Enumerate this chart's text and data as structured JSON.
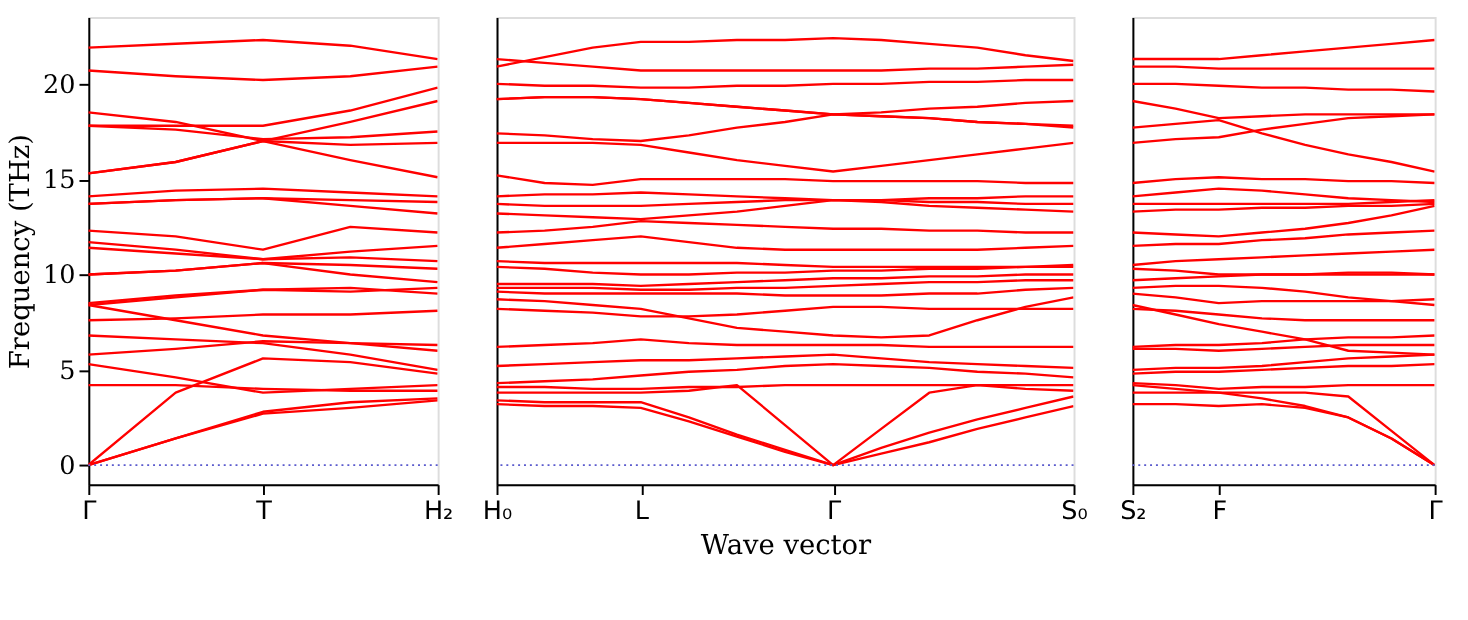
{
  "chart_data": [
    {
      "type": "line",
      "ylabel": "Frequency (THz)",
      "categories": [
        "Γ",
        null,
        "T",
        null,
        "H₂"
      ],
      "ylim": [
        -1,
        23.5
      ],
      "yticks": [
        0,
        5,
        10,
        15,
        20
      ],
      "grid": false,
      "marker": "none",
      "line_style": "solid",
      "ref_lines": [
        {
          "axis": "y",
          "value": 0,
          "label": null,
          "color": "#5a5acd",
          "line_style": "dotted"
        }
      ],
      "series": [
        {
          "color": "#ff0000",
          "values": [
            21.9,
            22.1,
            22.3,
            22.0,
            21.3
          ]
        },
        {
          "color": "#ff0000",
          "values": [
            20.7,
            20.4,
            20.2,
            20.4,
            20.9
          ]
        },
        {
          "color": "#ff0000",
          "values": [
            18.5,
            18.0,
            17.0,
            16.0,
            15.1
          ]
        },
        {
          "color": "#ff0000",
          "values": [
            17.8,
            17.8,
            17.8,
            18.6,
            19.8
          ]
        },
        {
          "color": "#ff0000",
          "values": [
            17.8,
            17.6,
            17.1,
            17.2,
            17.5
          ]
        },
        {
          "color": "#ff0000",
          "values": [
            15.3,
            15.9,
            17.0,
            18.0,
            19.1
          ]
        },
        {
          "color": "#ff0000",
          "values": [
            15.3,
            15.9,
            17.0,
            16.8,
            16.9
          ]
        },
        {
          "color": "#ff0000",
          "values": [
            14.1,
            14.4,
            14.5,
            14.3,
            14.1
          ]
        },
        {
          "color": "#ff0000",
          "values": [
            13.7,
            13.9,
            14.0,
            13.9,
            13.8
          ]
        },
        {
          "color": "#ff0000",
          "values": [
            13.7,
            13.9,
            14.0,
            13.6,
            13.2
          ]
        },
        {
          "color": "#ff0000",
          "values": [
            12.3,
            12.0,
            11.3,
            12.5,
            12.2
          ]
        },
        {
          "color": "#ff0000",
          "values": [
            11.7,
            11.3,
            10.8,
            11.2,
            11.5
          ]
        },
        {
          "color": "#ff0000",
          "values": [
            11.4,
            11.1,
            10.8,
            10.9,
            10.7
          ]
        },
        {
          "color": "#ff0000",
          "values": [
            10.0,
            10.2,
            10.6,
            10.5,
            10.3
          ]
        },
        {
          "color": "#ff0000",
          "values": [
            10.0,
            10.2,
            10.6,
            10.0,
            9.6
          ]
        },
        {
          "color": "#ff0000",
          "values": [
            8.5,
            8.9,
            9.2,
            9.1,
            9.3
          ]
        },
        {
          "color": "#ff0000",
          "values": [
            8.4,
            8.8,
            9.2,
            9.3,
            9.0
          ]
        },
        {
          "color": "#ff0000",
          "values": [
            8.4,
            7.6,
            6.8,
            6.4,
            6.0
          ]
        },
        {
          "color": "#ff0000",
          "values": [
            7.6,
            7.7,
            7.9,
            7.9,
            8.1
          ]
        },
        {
          "color": "#ff0000",
          "values": [
            6.8,
            6.6,
            6.4,
            5.8,
            5.0
          ]
        },
        {
          "color": "#ff0000",
          "values": [
            5.8,
            6.1,
            6.5,
            6.4,
            6.3
          ]
        },
        {
          "color": "#ff0000",
          "values": [
            5.3,
            4.6,
            3.8,
            4.0,
            4.2
          ]
        },
        {
          "color": "#ff0000",
          "values": [
            4.2,
            4.2,
            4.0,
            3.9,
            3.9
          ]
        },
        {
          "color": "#ff0000",
          "values": [
            0,
            3.8,
            5.6,
            5.4,
            4.8
          ]
        },
        {
          "color": "#ff0000",
          "values": [
            0,
            1.4,
            2.8,
            3.3,
            3.5
          ]
        },
        {
          "color": "#ff0000",
          "values": [
            0,
            1.4,
            2.7,
            3.0,
            3.4
          ]
        }
      ]
    },
    {
      "type": "line",
      "xlabel": "Wave vector",
      "categories": [
        "H₀",
        null,
        null,
        "L",
        null,
        null,
        null,
        "Γ",
        null,
        null,
        null,
        null,
        "S₀"
      ],
      "ylim": [
        -1,
        23.5
      ],
      "tick_labels": "x",
      "grid": false,
      "marker": "none",
      "line_style": "solid",
      "ref_lines": [
        {
          "axis": "y",
          "value": 0,
          "label": null,
          "color": "#5a5acd",
          "line_style": "dotted"
        }
      ],
      "series": [
        {
          "color": "#ff0000",
          "values": [
            20.9,
            21.4,
            21.9,
            22.2,
            22.2,
            22.3,
            22.3,
            22.4,
            22.3,
            22.1,
            21.9,
            21.5,
            21.2
          ]
        },
        {
          "color": "#ff0000",
          "values": [
            21.3,
            21.1,
            20.9,
            20.7,
            20.7,
            20.7,
            20.7,
            20.7,
            20.7,
            20.8,
            20.8,
            20.9,
            21.0
          ]
        },
        {
          "color": "#ff0000",
          "values": [
            20.0,
            19.9,
            19.9,
            19.8,
            19.8,
            19.9,
            19.9,
            20.0,
            20.0,
            20.1,
            20.1,
            20.2,
            20.2
          ]
        },
        {
          "color": "#ff0000",
          "values": [
            19.2,
            19.3,
            19.3,
            19.2,
            19.0,
            18.8,
            18.6,
            18.4,
            18.3,
            18.2,
            18.0,
            17.9,
            17.8
          ]
        },
        {
          "color": "#ff0000",
          "values": [
            19.2,
            19.3,
            19.3,
            19.2,
            19.0,
            18.8,
            18.6,
            18.4,
            18.5,
            18.7,
            18.8,
            19.0,
            19.1
          ]
        },
        {
          "color": "#ff0000",
          "values": [
            17.4,
            17.3,
            17.1,
            17.0,
            17.3,
            17.7,
            18.0,
            18.4,
            18.3,
            18.2,
            18.0,
            17.9,
            17.7
          ]
        },
        {
          "color": "#ff0000",
          "values": [
            16.9,
            16.9,
            16.9,
            16.8,
            16.4,
            16.0,
            15.7,
            15.4,
            15.7,
            16.0,
            16.3,
            16.6,
            16.9
          ]
        },
        {
          "color": "#ff0000",
          "values": [
            15.2,
            14.8,
            14.7,
            15.0,
            15.0,
            15.0,
            15.0,
            14.9,
            14.9,
            14.9,
            14.9,
            14.8,
            14.8
          ]
        },
        {
          "color": "#ff0000",
          "values": [
            14.1,
            14.2,
            14.2,
            14.3,
            14.2,
            14.1,
            14.0,
            13.9,
            13.9,
            14.0,
            14.0,
            14.1,
            14.1
          ]
        },
        {
          "color": "#ff0000",
          "values": [
            13.7,
            13.6,
            13.6,
            13.6,
            13.7,
            13.8,
            13.9,
            13.9,
            13.9,
            13.8,
            13.8,
            13.7,
            13.7
          ]
        },
        {
          "color": "#ff0000",
          "values": [
            13.2,
            13.1,
            13.0,
            12.9,
            13.1,
            13.3,
            13.6,
            13.9,
            13.8,
            13.6,
            13.5,
            13.4,
            13.3
          ]
        },
        {
          "color": "#ff0000",
          "values": [
            12.2,
            12.3,
            12.5,
            12.8,
            12.7,
            12.6,
            12.5,
            12.4,
            12.4,
            12.3,
            12.3,
            12.2,
            12.2
          ]
        },
        {
          "color": "#ff0000",
          "values": [
            11.4,
            11.6,
            11.8,
            12.0,
            11.7,
            11.4,
            11.3,
            11.3,
            11.3,
            11.3,
            11.3,
            11.4,
            11.5
          ]
        },
        {
          "color": "#ff0000",
          "values": [
            10.7,
            10.6,
            10.6,
            10.6,
            10.6,
            10.6,
            10.5,
            10.4,
            10.4,
            10.4,
            10.4,
            10.4,
            10.4
          ]
        },
        {
          "color": "#ff0000",
          "values": [
            10.4,
            10.3,
            10.1,
            10.0,
            10.0,
            10.1,
            10.1,
            10.2,
            10.2,
            10.3,
            10.3,
            10.4,
            10.5
          ]
        },
        {
          "color": "#ff0000",
          "values": [
            9.5,
            9.5,
            9.5,
            9.4,
            9.5,
            9.6,
            9.7,
            9.8,
            9.8,
            9.9,
            9.9,
            10.0,
            10.0
          ]
        },
        {
          "color": "#ff0000",
          "values": [
            9.3,
            9.3,
            9.3,
            9.2,
            9.2,
            9.3,
            9.3,
            9.4,
            9.5,
            9.6,
            9.6,
            9.7,
            9.7
          ]
        },
        {
          "color": "#ff0000",
          "values": [
            9.1,
            9.0,
            9.0,
            9.0,
            9.0,
            9.0,
            8.9,
            8.9,
            8.9,
            9.0,
            9.0,
            9.2,
            9.3
          ]
        },
        {
          "color": "#ff0000",
          "values": [
            8.2,
            8.1,
            8.0,
            7.8,
            7.8,
            7.9,
            8.1,
            8.3,
            8.3,
            8.2,
            8.2,
            8.2,
            8.2
          ]
        },
        {
          "color": "#ff0000",
          "values": [
            8.7,
            8.6,
            8.4,
            8.2,
            7.7,
            7.2,
            7.0,
            6.8,
            6.7,
            6.8,
            7.6,
            8.3,
            8.8
          ]
        },
        {
          "color": "#ff0000",
          "values": [
            6.2,
            6.3,
            6.4,
            6.6,
            6.4,
            6.3,
            6.3,
            6.3,
            6.3,
            6.2,
            6.2,
            6.2,
            6.2
          ]
        },
        {
          "color": "#ff0000",
          "values": [
            5.2,
            5.3,
            5.4,
            5.5,
            5.5,
            5.6,
            5.7,
            5.8,
            5.6,
            5.4,
            5.3,
            5.2,
            5.1
          ]
        },
        {
          "color": "#ff0000",
          "values": [
            4.3,
            4.4,
            4.5,
            4.7,
            4.9,
            5.0,
            5.2,
            5.3,
            5.2,
            5.1,
            4.9,
            4.8,
            4.6
          ]
        },
        {
          "color": "#ff0000",
          "values": [
            4.1,
            4.1,
            4.0,
            4.0,
            4.1,
            4.1,
            4.2,
            4.2,
            4.2,
            4.2,
            4.2,
            4.2,
            4.2
          ]
        },
        {
          "color": "#ff0000",
          "values": [
            3.8,
            3.8,
            3.8,
            3.8,
            3.9,
            4.2,
            2.1,
            0,
            1.9,
            3.8,
            4.2,
            4.0,
            3.9
          ]
        },
        {
          "color": "#ff0000",
          "values": [
            3.4,
            3.3,
            3.3,
            3.3,
            2.5,
            1.6,
            0.8,
            0,
            0.9,
            1.7,
            2.4,
            3.0,
            3.6
          ]
        },
        {
          "color": "#ff0000",
          "values": [
            3.2,
            3.1,
            3.1,
            3.0,
            2.3,
            1.5,
            0.7,
            0,
            0.6,
            1.2,
            1.9,
            2.5,
            3.1
          ]
        }
      ]
    },
    {
      "type": "line",
      "categories": [
        "S₂",
        null,
        "F",
        null,
        null,
        null,
        null,
        "Γ"
      ],
      "ylim": [
        -1,
        23.5
      ],
      "tick_labels": "x",
      "grid": false,
      "marker": "none",
      "line_style": "solid",
      "ref_lines": [
        {
          "axis": "y",
          "value": 0,
          "label": null,
          "color": "#5a5acd",
          "line_style": "dotted"
        }
      ],
      "series": [
        {
          "color": "#ff0000",
          "values": [
            21.3,
            21.3,
            21.3,
            21.5,
            21.7,
            21.9,
            22.1,
            22.3
          ]
        },
        {
          "color": "#ff0000",
          "values": [
            20.9,
            20.9,
            20.8,
            20.8,
            20.8,
            20.8,
            20.8,
            20.8
          ]
        },
        {
          "color": "#ff0000",
          "values": [
            20.0,
            20.0,
            19.9,
            19.8,
            19.8,
            19.7,
            19.7,
            19.6
          ]
        },
        {
          "color": "#ff0000",
          "values": [
            19.1,
            18.7,
            18.2,
            18.3,
            18.4,
            18.4,
            18.4,
            18.4
          ]
        },
        {
          "color": "#ff0000",
          "values": [
            17.7,
            17.9,
            18.1,
            17.4,
            16.8,
            16.3,
            15.9,
            15.4
          ]
        },
        {
          "color": "#ff0000",
          "values": [
            16.9,
            17.1,
            17.2,
            17.6,
            17.9,
            18.2,
            18.3,
            18.4
          ]
        },
        {
          "color": "#ff0000",
          "values": [
            14.8,
            15.0,
            15.1,
            15.0,
            15.0,
            14.9,
            14.9,
            14.8
          ]
        },
        {
          "color": "#ff0000",
          "values": [
            14.1,
            14.3,
            14.5,
            14.4,
            14.2,
            14.0,
            13.9,
            13.8
          ]
        },
        {
          "color": "#ff0000",
          "values": [
            13.7,
            13.7,
            13.7,
            13.7,
            13.7,
            13.7,
            13.8,
            13.9
          ]
        },
        {
          "color": "#ff0000",
          "values": [
            13.3,
            13.4,
            13.4,
            13.5,
            13.5,
            13.6,
            13.6,
            13.7
          ]
        },
        {
          "color": "#ff0000",
          "values": [
            12.2,
            12.1,
            12.0,
            12.2,
            12.4,
            12.7,
            13.1,
            13.6
          ]
        },
        {
          "color": "#ff0000",
          "values": [
            11.5,
            11.6,
            11.6,
            11.8,
            11.9,
            12.1,
            12.2,
            12.3
          ]
        },
        {
          "color": "#ff0000",
          "values": [
            10.5,
            10.7,
            10.8,
            10.9,
            11.0,
            11.1,
            11.2,
            11.3
          ]
        },
        {
          "color": "#ff0000",
          "values": [
            10.3,
            10.2,
            10.0,
            10.0,
            10.0,
            10.1,
            10.1,
            10.0
          ]
        },
        {
          "color": "#ff0000",
          "values": [
            9.7,
            9.8,
            9.9,
            10.0,
            10.0,
            10.0,
            10.0,
            10.0
          ]
        },
        {
          "color": "#ff0000",
          "values": [
            9.3,
            9.4,
            9.4,
            9.3,
            9.1,
            8.8,
            8.6,
            8.4
          ]
        },
        {
          "color": "#ff0000",
          "values": [
            9.0,
            8.8,
            8.5,
            8.6,
            8.6,
            8.6,
            8.6,
            8.7
          ]
        },
        {
          "color": "#ff0000",
          "values": [
            8.2,
            8.1,
            7.9,
            7.7,
            7.6,
            7.6,
            7.6,
            7.6
          ]
        },
        {
          "color": "#ff0000",
          "values": [
            8.4,
            7.9,
            7.4,
            7.0,
            6.6,
            6.0,
            5.9,
            5.8
          ]
        },
        {
          "color": "#ff0000",
          "values": [
            6.2,
            6.3,
            6.3,
            6.4,
            6.6,
            6.7,
            6.7,
            6.8
          ]
        },
        {
          "color": "#ff0000",
          "values": [
            6.1,
            6.1,
            6.0,
            6.1,
            6.2,
            6.3,
            6.3,
            6.3
          ]
        },
        {
          "color": "#ff0000",
          "values": [
            5.0,
            5.1,
            5.1,
            5.2,
            5.4,
            5.6,
            5.7,
            5.8
          ]
        },
        {
          "color": "#ff0000",
          "values": [
            4.8,
            4.9,
            4.9,
            5.0,
            5.1,
            5.2,
            5.2,
            5.3
          ]
        },
        {
          "color": "#ff0000",
          "values": [
            4.3,
            4.2,
            4.0,
            4.1,
            4.1,
            4.2,
            4.2,
            4.2
          ]
        },
        {
          "color": "#ff0000",
          "values": [
            4.2,
            4.0,
            3.8,
            3.8,
            3.8,
            3.6,
            1.8,
            0
          ]
        },
        {
          "color": "#ff0000",
          "values": [
            3.8,
            3.8,
            3.8,
            3.5,
            3.1,
            2.5,
            1.4,
            0
          ]
        },
        {
          "color": "#ff0000",
          "values": [
            3.2,
            3.2,
            3.1,
            3.2,
            3.0,
            2.5,
            1.4,
            0
          ]
        }
      ]
    }
  ]
}
